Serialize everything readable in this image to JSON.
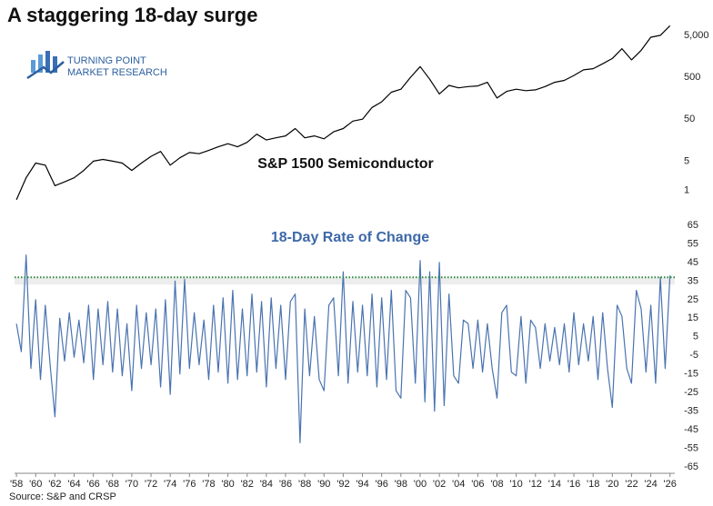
{
  "chart_data": [
    {
      "type": "line",
      "title": "A staggering 18-day surge",
      "logo": [
        "TURNING POINT",
        "MARKET RESEARCH"
      ],
      "log_scale": true,
      "xlim": [
        1957.8,
        2026.5
      ],
      "ylim": [
        0.4,
        10000
      ],
      "yticks": [
        1,
        5,
        50,
        500,
        {
          "value": 5000,
          "label": "5,000"
        }
      ],
      "x": [
        1958,
        1959,
        1960,
        1961,
        1962,
        1963,
        1964,
        1965,
        1966,
        1967,
        1968,
        1969,
        1970,
        1971,
        1972,
        1973,
        1974,
        1975,
        1976,
        1977,
        1978,
        1979,
        1980,
        1981,
        1982,
        1983,
        1984,
        1985,
        1986,
        1987,
        1988,
        1989,
        1990,
        1991,
        1992,
        1993,
        1994,
        1995,
        1996,
        1997,
        1998,
        1999,
        2000,
        2001,
        2002,
        2003,
        2004,
        2005,
        2006,
        2007,
        2008,
        2009,
        2010,
        2011,
        2012,
        2013,
        2014,
        2015,
        2016,
        2017,
        2018,
        2019,
        2020,
        2021,
        2022,
        2023,
        2024,
        2025,
        2026
      ],
      "series": [
        {
          "name": "S&P 1500 Semiconductor",
          "color": "#000000",
          "values": [
            0.6,
            2.0,
            4.5,
            4.0,
            1.3,
            1.6,
            2.0,
            3.0,
            5.0,
            5.5,
            5.0,
            4.5,
            3.0,
            4.5,
            6.5,
            8.5,
            4.0,
            6.0,
            8.0,
            7.5,
            9,
            11,
            13,
            11,
            14,
            22,
            16,
            18,
            20,
            30,
            18,
            20,
            17,
            25,
            30,
            45,
            50,
            95,
            130,
            220,
            260,
            500,
            900,
            450,
            200,
            320,
            280,
            300,
            310,
            380,
            160,
            230,
            260,
            240,
            250,
            300,
            380,
            420,
            550,
            750,
            800,
            1050,
            1400,
            2400,
            1300,
            2200,
            4500,
            5000,
            8500
          ]
        }
      ]
    },
    {
      "type": "line",
      "title": "18-Day Rate of Change",
      "source": "Source: S&P and CRSP",
      "xlim": [
        1957.8,
        2026.5
      ],
      "ylim": [
        -65,
        65
      ],
      "yticks": [
        -65,
        -55,
        -45,
        -35,
        -25,
        -15,
        -5,
        5,
        15,
        25,
        35,
        45,
        55,
        65
      ],
      "xticks": [
        {
          "value": 1958,
          "label": "'58"
        },
        {
          "value": 1960,
          "label": "'60"
        },
        {
          "value": 1962,
          "label": "'62"
        },
        {
          "value": 1964,
          "label": "'64"
        },
        {
          "value": 1966,
          "label": "'66"
        },
        {
          "value": 1968,
          "label": "'68"
        },
        {
          "value": 1970,
          "label": "'70"
        },
        {
          "value": 1972,
          "label": "'72"
        },
        {
          "value": 1974,
          "label": "'74"
        },
        {
          "value": 1976,
          "label": "'76"
        },
        {
          "value": 1978,
          "label": "'78"
        },
        {
          "value": 1980,
          "label": "'80"
        },
        {
          "value": 1982,
          "label": "'82"
        },
        {
          "value": 1984,
          "label": "'84"
        },
        {
          "value": 1986,
          "label": "'86"
        },
        {
          "value": 1988,
          "label": "'88"
        },
        {
          "value": 1990,
          "label": "'90"
        },
        {
          "value": 1992,
          "label": "'92"
        },
        {
          "value": 1994,
          "label": "'94"
        },
        {
          "value": 1996,
          "label": "'96"
        },
        {
          "value": 1998,
          "label": "'98"
        },
        {
          "value": 2000,
          "label": "'00"
        },
        {
          "value": 2002,
          "label": "'02"
        },
        {
          "value": 2004,
          "label": "'04"
        },
        {
          "value": 2006,
          "label": "'06"
        },
        {
          "value": 2008,
          "label": "'08"
        },
        {
          "value": 2010,
          "label": "'10"
        },
        {
          "value": 2012,
          "label": "'12"
        },
        {
          "value": 2014,
          "label": "'14"
        },
        {
          "value": 2016,
          "label": "'16"
        },
        {
          "value": 2018,
          "label": "'18"
        },
        {
          "value": 2020,
          "label": "'20"
        },
        {
          "value": 2022,
          "label": "'22"
        },
        {
          "value": 2024,
          "label": "'24"
        },
        {
          "value": 2026,
          "label": "'26"
        }
      ],
      "threshold": {
        "value": 37,
        "color": "#2e8b3e"
      },
      "x": [
        1958,
        1958.5,
        1959,
        1959.5,
        1960,
        1960.5,
        1961,
        1961.5,
        1962,
        1962.5,
        1963,
        1963.5,
        1964,
        1964.5,
        1965,
        1965.5,
        1966,
        1966.5,
        1967,
        1967.5,
        1968,
        1968.5,
        1969,
        1969.5,
        1970,
        1970.5,
        1971,
        1971.5,
        1972,
        1972.5,
        1973,
        1973.5,
        1974,
        1974.5,
        1975,
        1975.5,
        1976,
        1976.5,
        1977,
        1977.5,
        1978,
        1978.5,
        1979,
        1979.5,
        1980,
        1980.5,
        1981,
        1981.5,
        1982,
        1982.5,
        1983,
        1983.5,
        1984,
        1984.5,
        1985,
        1985.5,
        1986,
        1986.5,
        1987,
        1987.5,
        1988,
        1988.5,
        1989,
        1989.5,
        1990,
        1990.5,
        1991,
        1991.5,
        1992,
        1992.5,
        1993,
        1993.5,
        1994,
        1994.5,
        1995,
        1995.5,
        1996,
        1996.5,
        1997,
        1997.5,
        1998,
        1998.5,
        1999,
        1999.5,
        2000,
        2000.5,
        2001,
        2001.5,
        2002,
        2002.5,
        2003,
        2003.5,
        2004,
        2004.5,
        2005,
        2005.5,
        2006,
        2006.5,
        2007,
        2007.5,
        2008,
        2008.5,
        2009,
        2009.5,
        2010,
        2010.5,
        2011,
        2011.5,
        2012,
        2012.5,
        2013,
        2013.5,
        2014,
        2014.5,
        2015,
        2015.5,
        2016,
        2016.5,
        2017,
        2017.5,
        2018,
        2018.5,
        2019,
        2019.5,
        2020,
        2020.5,
        2021,
        2021.5,
        2022,
        2022.5,
        2023,
        2023.5,
        2024,
        2024.5,
        2025,
        2025.5,
        2026
      ],
      "series": [
        {
          "color": "#4a73b0",
          "values": [
            12,
            -3,
            49,
            -12,
            25,
            -18,
            22,
            -10,
            -38,
            15,
            -8,
            18,
            -6,
            14,
            -9,
            22,
            -18,
            20,
            -10,
            24,
            -14,
            20,
            -16,
            12,
            -24,
            22,
            -12,
            18,
            -10,
            20,
            -22,
            25,
            -26,
            35,
            -15,
            36,
            -12,
            18,
            -10,
            14,
            -18,
            22,
            -14,
            26,
            -20,
            30,
            -18,
            20,
            -16,
            28,
            -14,
            24,
            -22,
            26,
            -12,
            22,
            -18,
            24,
            28,
            -52,
            20,
            -16,
            16,
            -18,
            -24,
            22,
            26,
            -16,
            40,
            -20,
            24,
            -14,
            22,
            -16,
            28,
            -22,
            26,
            -18,
            30,
            -24,
            -28,
            30,
            26,
            -20,
            46,
            -30,
            40,
            -35,
            45,
            -32,
            28,
            -16,
            -20,
            14,
            12,
            -12,
            14,
            -14,
            12,
            -12,
            -28,
            18,
            22,
            -14,
            -16,
            16,
            -20,
            14,
            10,
            -12,
            12,
            -8,
            10,
            -10,
            12,
            -14,
            18,
            -10,
            12,
            -8,
            16,
            -18,
            18,
            -12,
            -33,
            22,
            16,
            -12,
            -20,
            30,
            20,
            -14,
            22,
            -20,
            37,
            -12,
            38
          ]
        }
      ]
    }
  ]
}
